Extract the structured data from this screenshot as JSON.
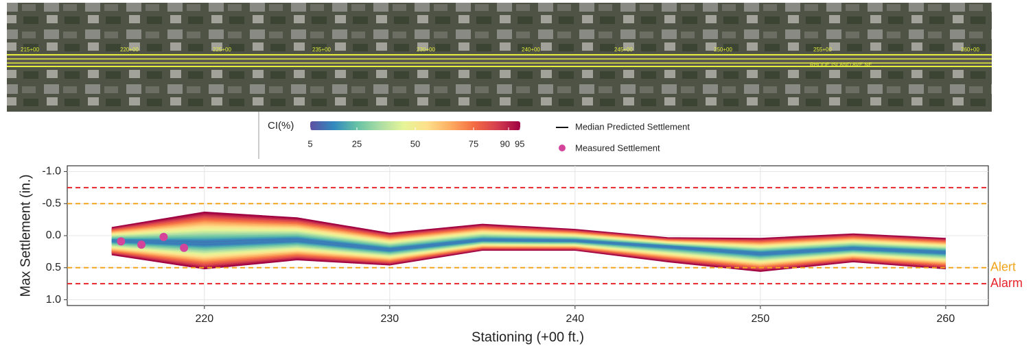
{
  "map": {
    "labels": [
      "215+00",
      "220+00",
      "225+00",
      "235+00",
      "230+00",
      "240+00",
      "245+00",
      "250+00",
      "255+00",
      "260+00"
    ],
    "street": "RHODE ISLAND AVE NE"
  },
  "chart_data": {
    "type": "line",
    "x_label": "Stationing (+00 ft.)",
    "y_label": "Max Settlement (in.)",
    "x": [
      215,
      220,
      225,
      230,
      235,
      240,
      245,
      250,
      255,
      260
    ],
    "series": [
      {
        "name": "Median Predicted Settlement",
        "color": "#3a7fb8",
        "legend_color": "#111111",
        "values": [
          0.08,
          0.12,
          0.07,
          0.22,
          0.07,
          0.08,
          0.17,
          0.28,
          0.2,
          0.26
        ]
      }
    ],
    "ci_band": {
      "ci_min": [
        -0.13,
        -0.37,
        -0.28,
        -0.04,
        -0.18,
        -0.1,
        0.03,
        0.04,
        -0.03,
        0.04
      ],
      "ci_max": [
        0.3,
        0.52,
        0.38,
        0.46,
        0.23,
        0.23,
        0.41,
        0.56,
        0.41,
        0.52
      ]
    },
    "colorbar": {
      "title": "CI(%)",
      "lim": [
        5,
        95
      ],
      "ticks": [
        5,
        25,
        50,
        75,
        90,
        95
      ],
      "colormap": [
        "#5e4fa2",
        "#3288bd",
        "#66c2a5",
        "#abdda4",
        "#e6f598",
        "#fee08b",
        "#fdae61",
        "#f46d43",
        "#d53e4f",
        "#9e0142"
      ]
    },
    "scatter": {
      "name": "Measured Settlement",
      "color": "#d4449b",
      "x": [
        215.5,
        216.6,
        217.8,
        218.9
      ],
      "values": [
        0.09,
        0.14,
        0.02,
        0.19
      ]
    },
    "thresholds": [
      {
        "label": "Alert",
        "value": 0.5,
        "color": "#f2a51c"
      },
      {
        "label": "Alarm",
        "value": 0.75,
        "color": "#e8242a"
      }
    ],
    "xlim": [
      212.6,
      262.3
    ],
    "xticks": [
      220,
      230,
      240,
      250,
      260
    ],
    "ylim": [
      -1.09,
      1.09
    ],
    "y_reversed": true,
    "yticks": [
      {
        "value": -1,
        "label": "-1.0"
      },
      {
        "value": -0.5,
        "label": "-0.5"
      },
      {
        "value": 0,
        "label": "0.0"
      },
      {
        "value": 0.5,
        "label": "0.5"
      },
      {
        "value": 1,
        "label": "1.0"
      }
    ],
    "grid": true
  }
}
